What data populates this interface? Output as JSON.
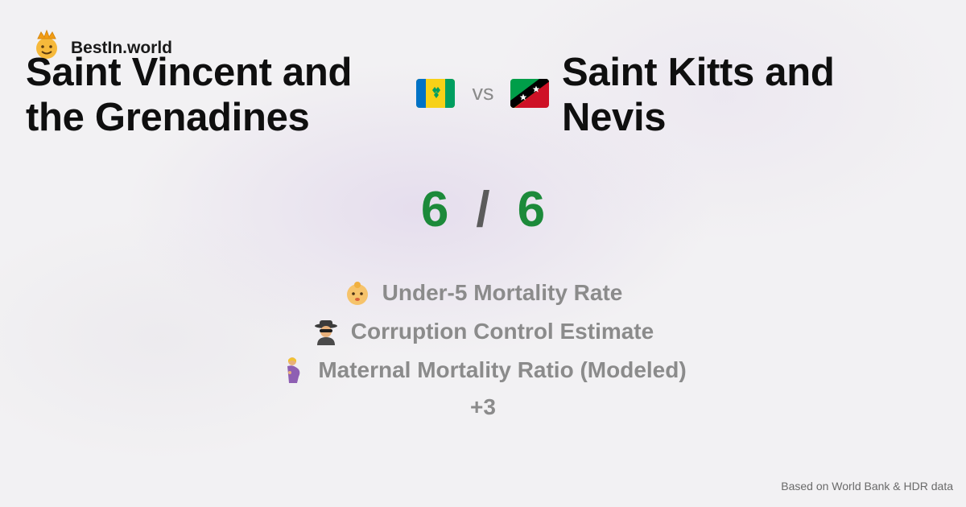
{
  "brand": {
    "name": "BestIn.world",
    "logo_icon": "crown-face-icon"
  },
  "left_country": {
    "name_line1": "Saint Vincent and",
    "name_line2": "the Grenadines",
    "flag_icon": "flag-saint-vincent-icon"
  },
  "right_country": {
    "name_line1": "Saint Kitts and",
    "name_line2": "Nevis",
    "flag_icon": "flag-saint-kitts-icon"
  },
  "vs_label": "vs",
  "score": {
    "left": "6",
    "separator": "/",
    "right": "6"
  },
  "metrics": [
    {
      "icon": "baby-icon",
      "label": "Under-5 Mortality Rate"
    },
    {
      "icon": "spy-icon",
      "label": "Corruption Control Estimate"
    },
    {
      "icon": "pregnant-woman-icon",
      "label": "Maternal Mortality Ratio (Modeled)"
    }
  ],
  "more_label": "+3",
  "footer": {
    "source": "Based on World Bank & HDR data"
  },
  "colors": {
    "score": "#1c8a3a",
    "title": "#0f0f0f",
    "muted": "#8b8b8b"
  }
}
